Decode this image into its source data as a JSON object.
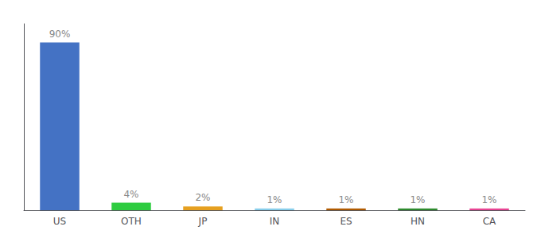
{
  "chart_data": {
    "type": "bar",
    "categories": [
      "US",
      "OTH",
      "JP",
      "IN",
      "ES",
      "HN",
      "CA"
    ],
    "values": [
      90,
      4,
      2,
      1,
      1,
      1,
      1
    ],
    "value_labels": [
      "90%",
      "4%",
      "2%",
      "1%",
      "1%",
      "1%",
      "1%"
    ],
    "colors": [
      "#4472c4",
      "#2ecc40",
      "#e6a020",
      "#87ceeb",
      "#b05a00",
      "#2d8a2d",
      "#e84393"
    ],
    "ylim": [
      0,
      100
    ],
    "yticks": [],
    "grid": false,
    "data_labels": true,
    "tick_labels": "x"
  }
}
